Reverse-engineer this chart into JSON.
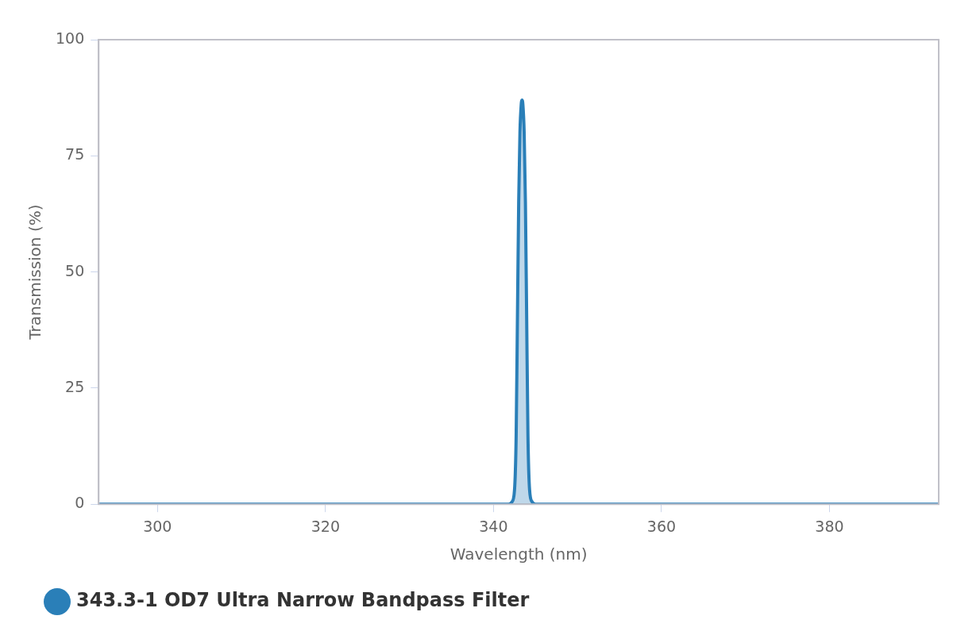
{
  "chart_data": {
    "type": "area",
    "xlabel": "Wavelength (nm)",
    "ylabel": "Transmission (%)",
    "xlim": [
      293,
      393
    ],
    "xticks": [
      300,
      320,
      340,
      360,
      380
    ],
    "ylim": [
      0,
      100
    ],
    "yticks": [
      0,
      25,
      50,
      75,
      100
    ],
    "grid": false,
    "legend": "bottom left",
    "marker": "none",
    "series": [
      {
        "name": "343.3-1 OD7 Ultra Narrow Bandpass Filter",
        "color": "#2a7fb8",
        "x": [
          293,
          341.8,
          342.2,
          342.5,
          342.7,
          342.85,
          343.0,
          343.15,
          343.3,
          343.4,
          343.5,
          343.65,
          343.8,
          343.95,
          344.1,
          344.3,
          344.6,
          345,
          393
        ],
        "values": [
          0,
          0,
          0.5,
          3,
          15,
          40,
          65,
          80,
          86,
          87,
          86,
          80,
          65,
          40,
          15,
          3,
          0.5,
          0,
          0
        ]
      }
    ]
  }
}
